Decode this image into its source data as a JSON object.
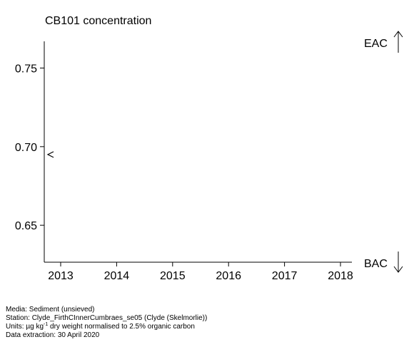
{
  "chart_data": {
    "type": "scatter",
    "title": "CB101 concentration",
    "xlabel": "",
    "ylabel": "",
    "xlim": [
      2013,
      2018
    ],
    "ylim": [
      0.6265,
      0.767
    ],
    "x_ticks": [
      "2013",
      "2014",
      "2015",
      "2016",
      "2017",
      "2018"
    ],
    "y_ticks": [
      "0.65",
      "0.70",
      "0.75"
    ],
    "points": [
      {
        "x": 2013,
        "y": 0.695,
        "marker": "<"
      }
    ],
    "upper_label": "EAC",
    "lower_label": "BAC"
  },
  "footer": {
    "media": "Media: Sediment (unsieved)",
    "station": "Station: Clyde_FirthCInnerCumbraes_se05 (Clyde (Skelmorlie))",
    "units_prefix": "Units:  µg kg",
    "units_sup": "-1",
    "units_suffix": " dry weight normalised to 2.5% organic carbon",
    "extraction": "Data extraction: 30 April 2020"
  }
}
